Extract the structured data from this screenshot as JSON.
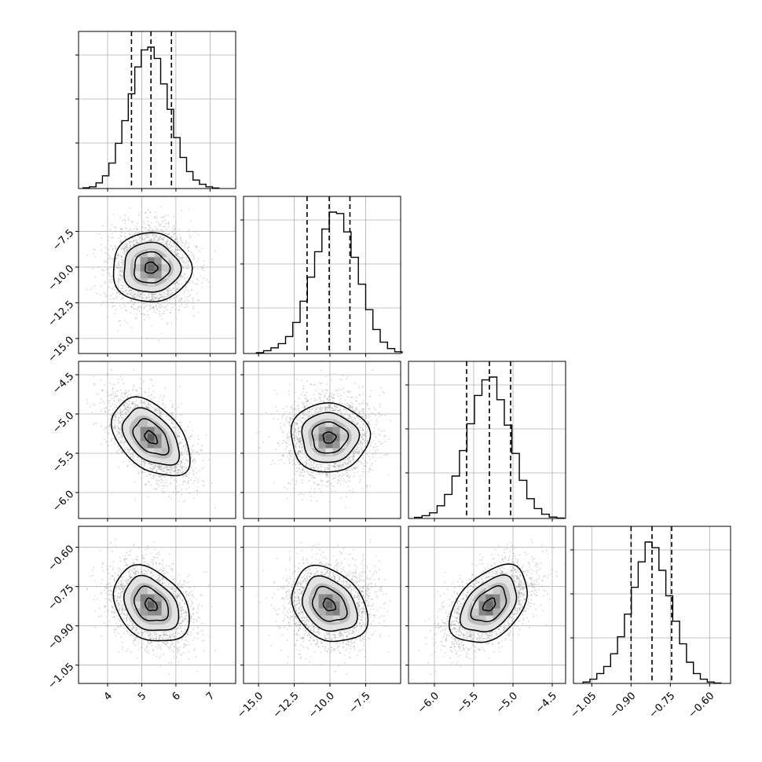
{
  "chart_data": {
    "type": "corner",
    "parameters": [
      {
        "index": 0,
        "range": [
          3.15,
          7.75
        ],
        "ticks": [
          4,
          5,
          6,
          7
        ],
        "tick_labels": [
          "4",
          "5",
          "6",
          "7"
        ],
        "quantiles": [
          4.7,
          5.27,
          5.87
        ],
        "hist_bins": [
          0.005,
          0.012,
          0.04,
          0.09,
          0.18,
          0.32,
          0.48,
          0.67,
          0.86,
          0.98,
          1.0,
          0.92,
          0.74,
          0.56,
          0.36,
          0.22,
          0.12,
          0.06,
          0.03,
          0.012,
          0.004
        ]
      },
      {
        "index": 1,
        "range": [
          -16.05,
          -5.05
        ],
        "ticks": [
          -15.0,
          -12.5,
          -10.0,
          -7.5
        ],
        "tick_labels": [
          "−15.0",
          "−12.5",
          "−10.0",
          "−7.5"
        ],
        "quantiles": [
          -11.6,
          -10.05,
          -8.6
        ],
        "hist_bins": [
          0.006,
          0.02,
          0.04,
          0.07,
          0.12,
          0.22,
          0.37,
          0.54,
          0.72,
          0.88,
          1.0,
          0.99,
          0.86,
          0.68,
          0.49,
          0.31,
          0.17,
          0.08,
          0.035,
          0.012
        ]
      },
      {
        "index": 2,
        "range": [
          -6.33,
          -4.33
        ],
        "ticks": [
          -6.0,
          -5.5,
          -5.0,
          -4.5
        ],
        "tick_labels": [
          "−6.0",
          "−5.5",
          "−5.0",
          "−4.5"
        ],
        "quantiles": [
          -5.59,
          -5.3,
          -5.03
        ],
        "hist_bins": [
          0.008,
          0.02,
          0.04,
          0.09,
          0.17,
          0.3,
          0.48,
          0.67,
          0.87,
          0.98,
          1.0,
          0.84,
          0.66,
          0.46,
          0.27,
          0.14,
          0.07,
          0.03,
          0.01,
          0.003
        ]
      },
      {
        "index": 3,
        "range": [
          -1.12,
          -0.52
        ],
        "ticks": [
          -1.05,
          -0.9,
          -0.75,
          -0.6
        ],
        "tick_labels": [
          "−1.05",
          "−0.90",
          "−0.75",
          "−0.60"
        ],
        "quantiles": [
          -0.9,
          -0.82,
          -0.745
        ],
        "hist_bins": [
          0.01,
          0.03,
          0.07,
          0.12,
          0.21,
          0.33,
          0.49,
          0.68,
          0.86,
          1.0,
          0.96,
          0.8,
          0.62,
          0.44,
          0.28,
          0.15,
          0.07,
          0.03,
          0.01,
          0.003
        ]
      }
    ],
    "correlations": {
      "1-0": 0.0,
      "2-0": -0.55,
      "2-1": 0.0,
      "3-0": -0.3,
      "3-1": -0.25,
      "3-2": 0.5
    },
    "grid": true,
    "style": {
      "line_color": "#000000",
      "grid_color": "#b0b0b0",
      "scatter_color": "#8a8a8a"
    }
  }
}
